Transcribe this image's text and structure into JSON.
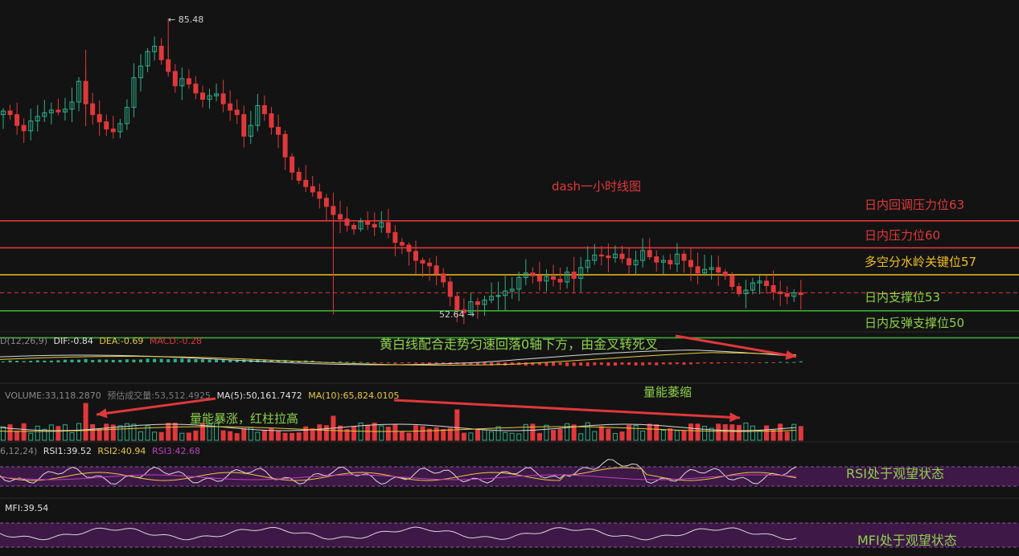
{
  "chart_title": "dash一小时线图",
  "price_markers": {
    "high": "85.48",
    "low": "52.64"
  },
  "levels": [
    {
      "label": "日内回调压力位63",
      "value": 63,
      "color": "#e0383b"
    },
    {
      "label": "日内压力位60",
      "value": 60,
      "color": "#e0383b"
    },
    {
      "label": "多空分水岭关键位57",
      "value": 57,
      "color": "#f0c020"
    },
    {
      "label": "日内支撑位53",
      "value": 53,
      "color": "#3faa3a"
    },
    {
      "label": "日内反弹支撑位50",
      "value": 50,
      "color": "#3faa3a"
    }
  ],
  "current_price_line": {
    "value": 55.0,
    "color": "#e0383b"
  },
  "macd": {
    "prefix": "D(12,26,9)",
    "dif": "DIF:-0.84",
    "dea": "DEA:-0.69",
    "macd": "MACD:-0.28",
    "annotation": "黄白线配合走势匀速回落0轴下方，由金叉转死叉"
  },
  "volume": {
    "prefix": "VOLUME:33,118.2870",
    "estimate": "预估成交量:53,512.4925",
    "ma5": "MA(5):50,161.7472",
    "ma10": "MA(10):65,824.0105",
    "annotation_left": "量能暴涨，红柱拉高",
    "annotation_right": "量能萎缩"
  },
  "rsi": {
    "prefix": "6,12,24)",
    "rsi1": "RSI1:39.52",
    "rsi2": "RSI2:40.94",
    "rsi3": "RSI3:42.68",
    "annotation": "RSI处于观望状态"
  },
  "mfi": {
    "value": "MFI:39.54",
    "annotation": "MFI处于观望状态"
  },
  "colors": {
    "up": "#2db08a",
    "down": "#e0383b",
    "dif": "#d9d9d9",
    "dea": "#e8c840",
    "rsi1": "#d9d9d9",
    "rsi2": "#e8c840",
    "rsi3": "#c040c0",
    "band": "#4a1a55",
    "annotation_green": "#8ed14a",
    "annotation_red": "#e0383b",
    "annotation_yellow": "#f0c020"
  },
  "chart_data": {
    "type": "candlestick",
    "title": "dash一小时线图",
    "series_close": [
      75.2,
      74.8,
      73.6,
      73.0,
      74.1,
      74.6,
      75.0,
      75.3,
      75.1,
      75.4,
      76.2,
      78.5,
      76.0,
      74.8,
      74.0,
      73.2,
      72.9,
      73.8,
      75.6,
      78.9,
      80.2,
      81.8,
      82.4,
      80.9,
      79.6,
      78.0,
      78.8,
      78.2,
      77.2,
      76.5,
      76.9,
      77.1,
      76.0,
      75.3,
      74.8,
      72.4,
      73.6,
      75.8,
      74.9,
      73.4,
      72.6,
      70.1,
      68.4,
      67.5,
      66.8,
      66.2,
      65.5,
      64.6,
      63.7,
      63.2,
      62.5,
      62.1,
      62.9,
      62.6,
      62.3,
      62.8,
      61.7,
      60.6,
      60.3,
      59.6,
      58.6,
      58.3,
      58.0,
      57.1,
      56.2,
      54.6,
      53.1,
      52.8,
      54.0,
      53.7,
      54.2,
      54.6,
      54.7,
      55.2,
      55.4,
      56.7,
      57.2,
      56.9,
      56.3,
      56.8,
      56.5,
      56.2,
      57.3,
      56.6,
      57.8,
      58.6,
      59.2,
      59.1,
      58.9,
      59.3,
      58.8,
      58.1,
      58.6,
      59.7,
      59.0,
      58.4,
      58.6,
      58.2,
      59.3,
      58.6,
      57.9,
      57.2,
      57.6,
      57.8,
      57.3,
      56.9,
      55.7,
      54.9,
      55.3,
      56.1,
      56.3,
      55.8,
      55.1,
      54.9,
      54.6,
      55.0,
      54.8
    ]
  }
}
